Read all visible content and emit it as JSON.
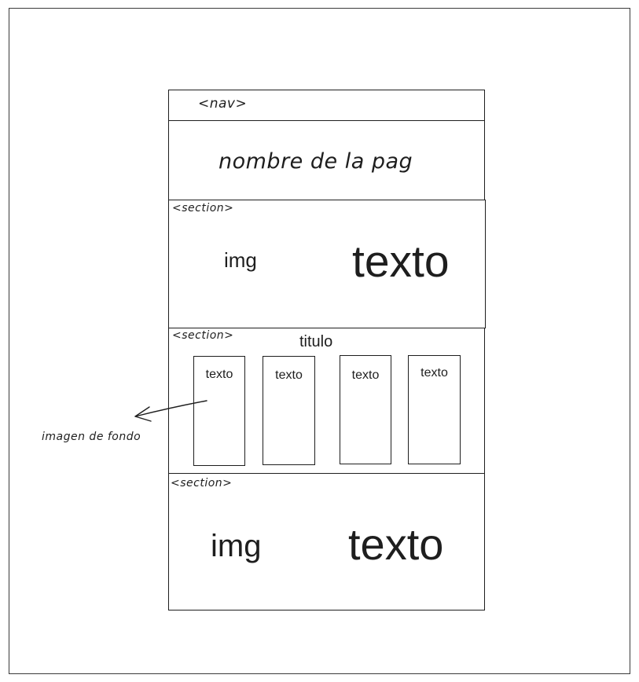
{
  "nav": {
    "tag": "<nav>"
  },
  "header": {
    "site_name": "nombre de la pag"
  },
  "section1": {
    "tag": "<section>",
    "img": "img",
    "text": "texto"
  },
  "section2": {
    "tag": "<section>",
    "title": "titulo",
    "cards": [
      {
        "text": "texto"
      },
      {
        "text": "texto"
      },
      {
        "text": "texto"
      },
      {
        "text": "texto"
      }
    ],
    "annotation": "imagen de fondo"
  },
  "section3": {
    "tag": "<section>",
    "img": "img",
    "text": "texto"
  }
}
